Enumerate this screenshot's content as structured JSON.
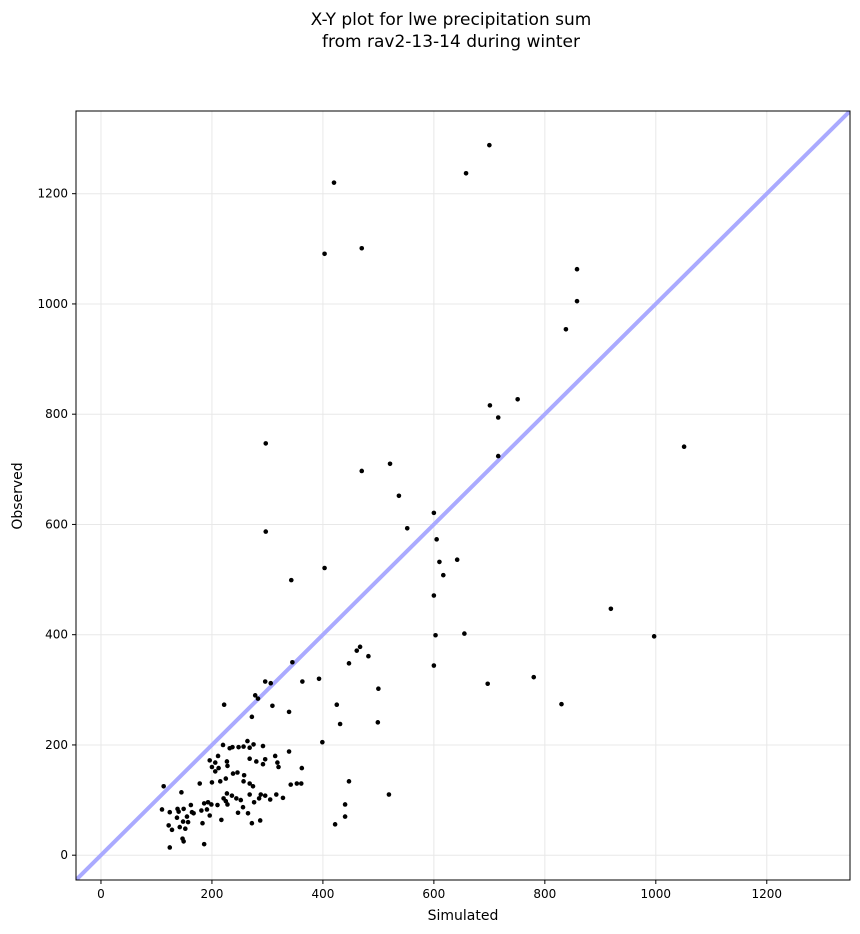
{
  "chart_data": {
    "type": "scatter",
    "title_lines": [
      "X-Y plot for lwe precipitation sum",
      "from rav2-13-14 during winter"
    ],
    "xlabel": "Simulated",
    "ylabel": "Observed",
    "xlim": [
      -45,
      1350
    ],
    "ylim": [
      -45,
      1350
    ],
    "xticks": [
      0,
      200,
      400,
      600,
      800,
      1000,
      1200
    ],
    "yticks": [
      0,
      200,
      400,
      600,
      800,
      1000,
      1200
    ],
    "grid": true,
    "reference_line": {
      "description": "y = x",
      "color": "#aaaaff"
    },
    "point_color": "#000000",
    "points": [
      [
        700,
        1288
      ],
      [
        658,
        1237
      ],
      [
        420,
        1220
      ],
      [
        470,
        1101
      ],
      [
        403,
        1091
      ],
      [
        858,
        1063
      ],
      [
        858,
        1005
      ],
      [
        838,
        954
      ],
      [
        751,
        827
      ],
      [
        701,
        816
      ],
      [
        716,
        794
      ],
      [
        716,
        724
      ],
      [
        1051,
        741
      ],
      [
        297,
        747
      ],
      [
        521,
        710
      ],
      [
        470,
        697
      ],
      [
        537,
        652
      ],
      [
        600,
        621
      ],
      [
        552,
        593
      ],
      [
        297,
        587
      ],
      [
        605,
        573
      ],
      [
        610,
        532
      ],
      [
        642,
        536
      ],
      [
        617,
        508
      ],
      [
        403,
        521
      ],
      [
        343,
        499
      ],
      [
        600,
        471
      ],
      [
        919,
        447
      ],
      [
        603,
        399
      ],
      [
        655,
        402
      ],
      [
        997,
        397
      ],
      [
        467,
        378
      ],
      [
        461,
        371
      ],
      [
        482,
        361
      ],
      [
        345,
        350
      ],
      [
        447,
        348
      ],
      [
        600,
        344
      ],
      [
        780,
        323
      ],
      [
        393,
        320
      ],
      [
        363,
        315
      ],
      [
        296,
        315
      ],
      [
        306,
        312
      ],
      [
        697,
        311
      ],
      [
        500,
        302
      ],
      [
        278,
        290
      ],
      [
        283,
        284
      ],
      [
        830,
        274
      ],
      [
        222,
        273
      ],
      [
        425,
        273
      ],
      [
        309,
        271
      ],
      [
        339,
        260
      ],
      [
        272,
        251
      ],
      [
        499,
        241
      ],
      [
        431,
        238
      ],
      [
        264,
        207
      ],
      [
        399,
        205
      ],
      [
        220,
        200
      ],
      [
        275,
        201
      ],
      [
        237,
        196
      ],
      [
        248,
        196
      ],
      [
        257,
        197
      ],
      [
        268,
        195
      ],
      [
        292,
        198
      ],
      [
        232,
        194
      ],
      [
        339,
        188
      ],
      [
        314,
        180
      ],
      [
        211,
        180
      ],
      [
        268,
        175
      ],
      [
        296,
        174
      ],
      [
        227,
        170
      ],
      [
        318,
        168
      ],
      [
        196,
        172
      ],
      [
        206,
        168
      ],
      [
        212,
        158
      ],
      [
        280,
        170
      ],
      [
        292,
        165
      ],
      [
        200,
        160
      ],
      [
        362,
        158
      ],
      [
        320,
        160
      ],
      [
        228,
        162
      ],
      [
        238,
        148
      ],
      [
        206,
        152
      ],
      [
        246,
        150
      ],
      [
        225,
        139
      ],
      [
        258,
        145
      ],
      [
        257,
        134
      ],
      [
        361,
        130
      ],
      [
        268,
        130
      ],
      [
        215,
        134
      ],
      [
        200,
        132
      ],
      [
        178,
        130
      ],
      [
        342,
        128
      ],
      [
        353,
        130
      ],
      [
        113,
        125
      ],
      [
        447,
        134
      ],
      [
        274,
        125
      ],
      [
        145,
        114
      ],
      [
        268,
        110
      ],
      [
        227,
        112
      ],
      [
        236,
        108
      ],
      [
        288,
        110
      ],
      [
        316,
        110
      ],
      [
        296,
        108
      ],
      [
        244,
        103
      ],
      [
        221,
        103
      ],
      [
        519,
        110
      ],
      [
        285,
        103
      ],
      [
        328,
        104
      ],
      [
        305,
        101
      ],
      [
        225,
        98
      ],
      [
        193,
        96
      ],
      [
        252,
        100
      ],
      [
        186,
        94
      ],
      [
        162,
        91
      ],
      [
        199,
        92
      ],
      [
        276,
        96
      ],
      [
        210,
        91
      ],
      [
        228,
        92
      ],
      [
        256,
        87
      ],
      [
        110,
        83
      ],
      [
        149,
        84
      ],
      [
        164,
        78
      ],
      [
        191,
        83
      ],
      [
        181,
        81
      ],
      [
        140,
        79
      ],
      [
        124,
        78
      ],
      [
        138,
        84
      ],
      [
        155,
        70
      ],
      [
        265,
        76
      ],
      [
        440,
        92
      ],
      [
        217,
        64
      ],
      [
        137,
        68
      ],
      [
        157,
        60
      ],
      [
        196,
        72
      ],
      [
        247,
        77
      ],
      [
        167,
        76
      ],
      [
        183,
        58
      ],
      [
        148,
        61
      ],
      [
        142,
        51
      ],
      [
        122,
        54
      ],
      [
        287,
        63
      ],
      [
        272,
        58
      ],
      [
        440,
        70
      ],
      [
        422,
        56
      ],
      [
        152,
        48
      ],
      [
        128,
        46
      ],
      [
        147,
        30
      ],
      [
        149,
        25
      ],
      [
        124,
        14
      ],
      [
        186,
        20
      ]
    ]
  }
}
